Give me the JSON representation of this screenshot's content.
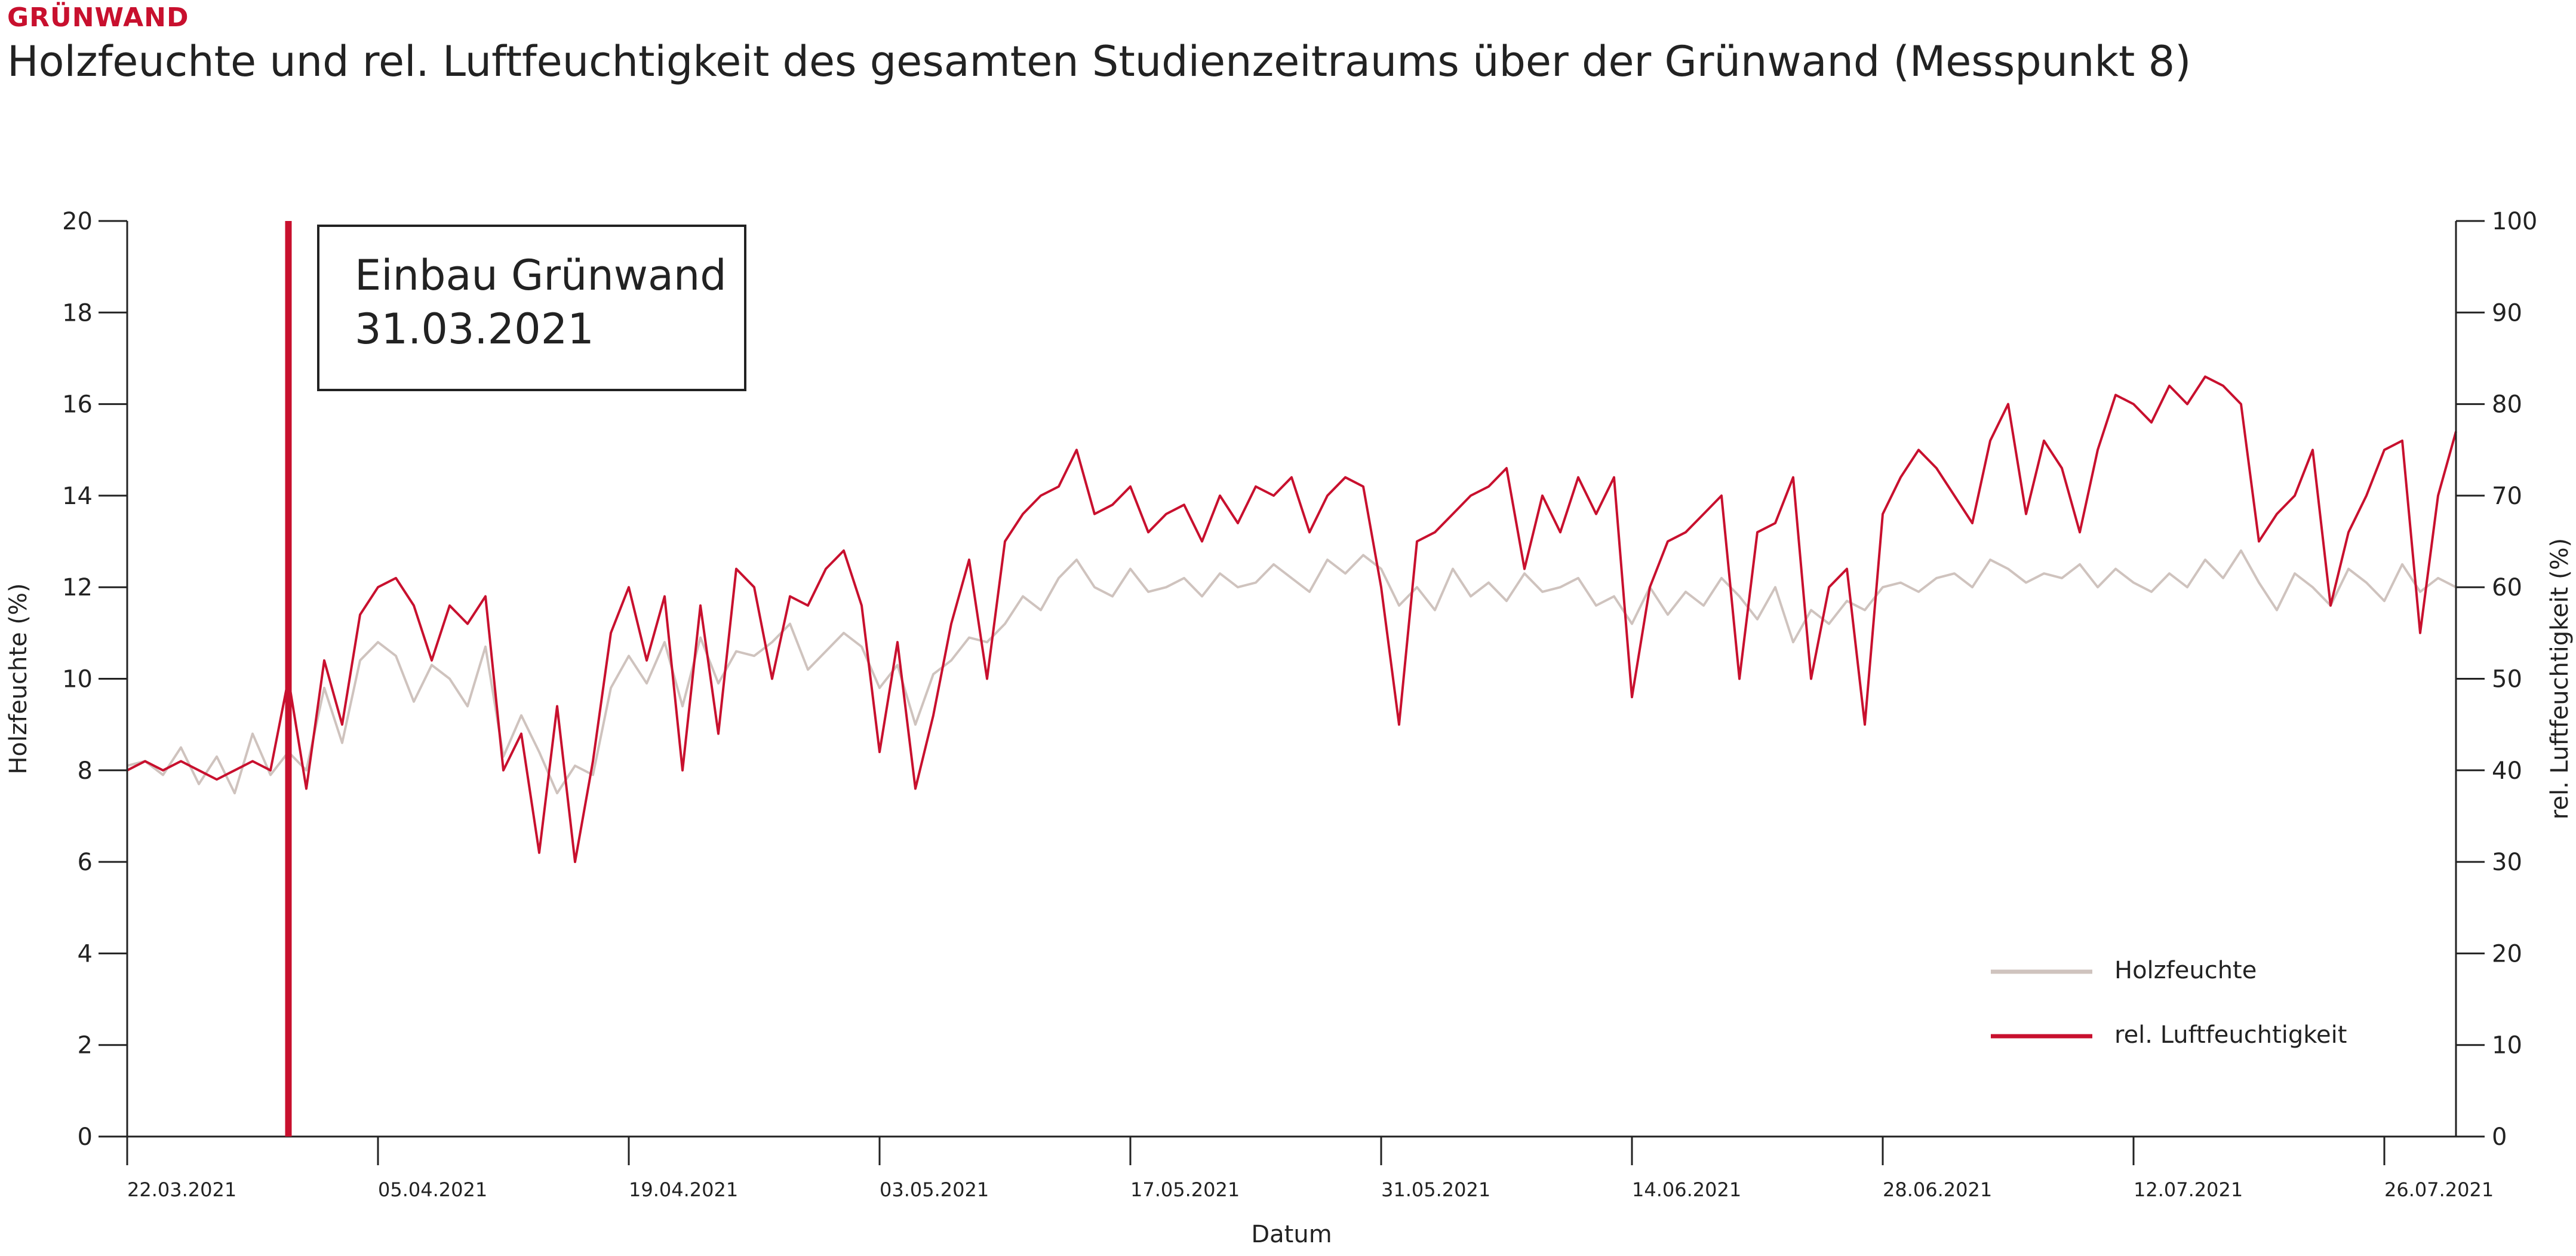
{
  "header": {
    "kicker": "GRÜNWAND",
    "title": "Holzfeuchte und rel. Luftfeuchtigkeit des gesamten Studienzeitraums über der Grünwand (Messpunkt 8)"
  },
  "colors": {
    "accent": "#c8102e",
    "holzfeuchte": "#cfc3be",
    "luftfeuchte": "#c8102e",
    "axis": "#222222"
  },
  "chart_data": {
    "type": "line",
    "xlabel": "Datum",
    "ylabel_left": "Holzfeuchte (%)",
    "ylabel_right": "rel. Luftfeuchtigkeit (%)",
    "xlim": [
      "2021-03-22",
      "2021-07-30"
    ],
    "ylim_left": [
      0,
      20
    ],
    "ylim_right": [
      0,
      100
    ],
    "yticks_left": [
      0,
      2,
      4,
      6,
      8,
      10,
      12,
      14,
      16,
      18,
      20
    ],
    "yticks_right": [
      0,
      10,
      20,
      30,
      40,
      50,
      60,
      70,
      80,
      90,
      100
    ],
    "xticks": [
      {
        "date": "2021-03-22",
        "label": "22.03.2021"
      },
      {
        "date": "2021-04-05",
        "label": "05.04.2021"
      },
      {
        "date": "2021-04-19",
        "label": "19.04.2021"
      },
      {
        "date": "2021-05-03",
        "label": "03.05.2021"
      },
      {
        "date": "2021-05-17",
        "label": "17.05.2021"
      },
      {
        "date": "2021-05-31",
        "label": "31.05.2021"
      },
      {
        "date": "2021-06-14",
        "label": "14.06.2021"
      },
      {
        "date": "2021-06-28",
        "label": "28.06.2021"
      },
      {
        "date": "2021-07-12",
        "label": "12.07.2021"
      },
      {
        "date": "2021-07-26",
        "label": "26.07.2021"
      }
    ],
    "grid": false,
    "legend_position": "bottom-right",
    "annotation": {
      "date": "2021-03-31",
      "line1": "Einbau Grünwand",
      "line2": "31.03.2021"
    },
    "series": [
      {
        "name": "Holzfeuchte",
        "axis": "left",
        "x": [
          "2021-03-22",
          "2021-03-23",
          "2021-03-24",
          "2021-03-25",
          "2021-03-26",
          "2021-03-27",
          "2021-03-28",
          "2021-03-29",
          "2021-03-30",
          "2021-03-31",
          "2021-04-01",
          "2021-04-02",
          "2021-04-03",
          "2021-04-04",
          "2021-04-05",
          "2021-04-06",
          "2021-04-07",
          "2021-04-08",
          "2021-04-09",
          "2021-04-10",
          "2021-04-11",
          "2021-04-12",
          "2021-04-13",
          "2021-04-14",
          "2021-04-15",
          "2021-04-16",
          "2021-04-17",
          "2021-04-18",
          "2021-04-19",
          "2021-04-20",
          "2021-04-21",
          "2021-04-22",
          "2021-04-23",
          "2021-04-24",
          "2021-04-25",
          "2021-04-26",
          "2021-04-27",
          "2021-04-28",
          "2021-04-29",
          "2021-04-30",
          "2021-05-01",
          "2021-05-02",
          "2021-05-03",
          "2021-05-04",
          "2021-05-05",
          "2021-05-06",
          "2021-05-07",
          "2021-05-08",
          "2021-05-09",
          "2021-05-10",
          "2021-05-11",
          "2021-05-12",
          "2021-05-13",
          "2021-05-14",
          "2021-05-15",
          "2021-05-16",
          "2021-05-17",
          "2021-05-18",
          "2021-05-19",
          "2021-05-20",
          "2021-05-21",
          "2021-05-22",
          "2021-05-23",
          "2021-05-24",
          "2021-05-25",
          "2021-05-26",
          "2021-05-27",
          "2021-05-28",
          "2021-05-29",
          "2021-05-30",
          "2021-05-31",
          "2021-06-01",
          "2021-06-02",
          "2021-06-03",
          "2021-06-04",
          "2021-06-05",
          "2021-06-06",
          "2021-06-07",
          "2021-06-08",
          "2021-06-09",
          "2021-06-10",
          "2021-06-11",
          "2021-06-12",
          "2021-06-13",
          "2021-06-14",
          "2021-06-15",
          "2021-06-16",
          "2021-06-17",
          "2021-06-18",
          "2021-06-19",
          "2021-06-20",
          "2021-06-21",
          "2021-06-22",
          "2021-06-23",
          "2021-06-24",
          "2021-06-25",
          "2021-06-26",
          "2021-06-27",
          "2021-06-28",
          "2021-06-29",
          "2021-06-30",
          "2021-07-01",
          "2021-07-02",
          "2021-07-03",
          "2021-07-04",
          "2021-07-05",
          "2021-07-06",
          "2021-07-07",
          "2021-07-08",
          "2021-07-09",
          "2021-07-10",
          "2021-07-11",
          "2021-07-12",
          "2021-07-13",
          "2021-07-14",
          "2021-07-15",
          "2021-07-16",
          "2021-07-17",
          "2021-07-18",
          "2021-07-19",
          "2021-07-20",
          "2021-07-21",
          "2021-07-22",
          "2021-07-23",
          "2021-07-24",
          "2021-07-25",
          "2021-07-26",
          "2021-07-27",
          "2021-07-28",
          "2021-07-29",
          "2021-07-30"
        ],
        "values": [
          8.1,
          8.2,
          7.9,
          8.5,
          7.7,
          8.3,
          7.5,
          8.8,
          7.9,
          8.4,
          8.0,
          9.8,
          8.6,
          10.4,
          10.8,
          10.5,
          9.5,
          10.3,
          10.0,
          9.4,
          10.7,
          8.3,
          9.2,
          8.4,
          7.5,
          8.1,
          7.9,
          9.8,
          10.5,
          9.9,
          10.8,
          9.4,
          10.9,
          9.9,
          10.6,
          10.5,
          10.8,
          11.2,
          10.2,
          10.6,
          11.0,
          10.7,
          9.8,
          10.3,
          9.0,
          10.1,
          10.4,
          10.9,
          10.8,
          11.2,
          11.8,
          11.5,
          12.2,
          12.6,
          12.0,
          11.8,
          12.4,
          11.9,
          12.0,
          12.2,
          11.8,
          12.3,
          12.0,
          12.1,
          12.5,
          12.2,
          11.9,
          12.6,
          12.3,
          12.7,
          12.4,
          11.6,
          12.0,
          11.5,
          12.4,
          11.8,
          12.1,
          11.7,
          12.3,
          11.9,
          12.0,
          12.2,
          11.6,
          11.8,
          11.2,
          12.0,
          11.4,
          11.9,
          11.6,
          12.2,
          11.8,
          11.3,
          12.0,
          10.8,
          11.5,
          11.2,
          11.7,
          11.5,
          12.0,
          12.1,
          11.9,
          12.2,
          12.3,
          12.0,
          12.6,
          12.4,
          12.1,
          12.3,
          12.2,
          12.5,
          12.0,
          12.4,
          12.1,
          11.9,
          12.3,
          12.0,
          12.6,
          12.2,
          12.8,
          12.1,
          11.5,
          12.3,
          12.0,
          11.6,
          12.4,
          12.1,
          11.7,
          12.5,
          11.9,
          12.2,
          12.0
        ]
      },
      {
        "name": "rel. Luftfeuchtigkeit",
        "axis": "right",
        "x": [
          "2021-03-22",
          "2021-03-23",
          "2021-03-24",
          "2021-03-25",
          "2021-03-26",
          "2021-03-27",
          "2021-03-28",
          "2021-03-29",
          "2021-03-30",
          "2021-03-31",
          "2021-04-01",
          "2021-04-02",
          "2021-04-03",
          "2021-04-04",
          "2021-04-05",
          "2021-04-06",
          "2021-04-07",
          "2021-04-08",
          "2021-04-09",
          "2021-04-10",
          "2021-04-11",
          "2021-04-12",
          "2021-04-13",
          "2021-04-14",
          "2021-04-15",
          "2021-04-16",
          "2021-04-17",
          "2021-04-18",
          "2021-04-19",
          "2021-04-20",
          "2021-04-21",
          "2021-04-22",
          "2021-04-23",
          "2021-04-24",
          "2021-04-25",
          "2021-04-26",
          "2021-04-27",
          "2021-04-28",
          "2021-04-29",
          "2021-04-30",
          "2021-05-01",
          "2021-05-02",
          "2021-05-03",
          "2021-05-04",
          "2021-05-05",
          "2021-05-06",
          "2021-05-07",
          "2021-05-08",
          "2021-05-09",
          "2021-05-10",
          "2021-05-11",
          "2021-05-12",
          "2021-05-13",
          "2021-05-14",
          "2021-05-15",
          "2021-05-16",
          "2021-05-17",
          "2021-05-18",
          "2021-05-19",
          "2021-05-20",
          "2021-05-21",
          "2021-05-22",
          "2021-05-23",
          "2021-05-24",
          "2021-05-25",
          "2021-05-26",
          "2021-05-27",
          "2021-05-28",
          "2021-05-29",
          "2021-05-30",
          "2021-05-31",
          "2021-06-01",
          "2021-06-02",
          "2021-06-03",
          "2021-06-04",
          "2021-06-05",
          "2021-06-06",
          "2021-06-07",
          "2021-06-08",
          "2021-06-09",
          "2021-06-10",
          "2021-06-11",
          "2021-06-12",
          "2021-06-13",
          "2021-06-14",
          "2021-06-15",
          "2021-06-16",
          "2021-06-17",
          "2021-06-18",
          "2021-06-19",
          "2021-06-20",
          "2021-06-21",
          "2021-06-22",
          "2021-06-23",
          "2021-06-24",
          "2021-06-25",
          "2021-06-26",
          "2021-06-27",
          "2021-06-28",
          "2021-06-29",
          "2021-06-30",
          "2021-07-01",
          "2021-07-02",
          "2021-07-03",
          "2021-07-04",
          "2021-07-05",
          "2021-07-06",
          "2021-07-07",
          "2021-07-08",
          "2021-07-09",
          "2021-07-10",
          "2021-07-11",
          "2021-07-12",
          "2021-07-13",
          "2021-07-14",
          "2021-07-15",
          "2021-07-16",
          "2021-07-17",
          "2021-07-18",
          "2021-07-19",
          "2021-07-20",
          "2021-07-21",
          "2021-07-22",
          "2021-07-23",
          "2021-07-24",
          "2021-07-25",
          "2021-07-26",
          "2021-07-27",
          "2021-07-28",
          "2021-07-29",
          "2021-07-30"
        ],
        "values": [
          40,
          41,
          40,
          41,
          40,
          39,
          40,
          41,
          40,
          50,
          38,
          52,
          45,
          57,
          60,
          61,
          58,
          52,
          58,
          56,
          59,
          40,
          44,
          31,
          47,
          30,
          41,
          55,
          60,
          52,
          59,
          40,
          58,
          44,
          62,
          60,
          50,
          59,
          58,
          62,
          64,
          58,
          42,
          54,
          38,
          46,
          56,
          63,
          50,
          65,
          68,
          70,
          71,
          75,
          68,
          69,
          71,
          66,
          68,
          69,
          65,
          70,
          67,
          71,
          70,
          72,
          66,
          70,
          72,
          71,
          60,
          45,
          65,
          66,
          68,
          70,
          71,
          73,
          62,
          70,
          66,
          72,
          68,
          72,
          48,
          60,
          65,
          66,
          68,
          70,
          50,
          66,
          67,
          72,
          50,
          60,
          62,
          45,
          68,
          72,
          75,
          73,
          70,
          67,
          76,
          80,
          68,
          76,
          73,
          66,
          75,
          81,
          80,
          78,
          82,
          80,
          83,
          82,
          80,
          65,
          68,
          70,
          75,
          58,
          66,
          70,
          75,
          76,
          55,
          70,
          77
        ]
      }
    ]
  }
}
